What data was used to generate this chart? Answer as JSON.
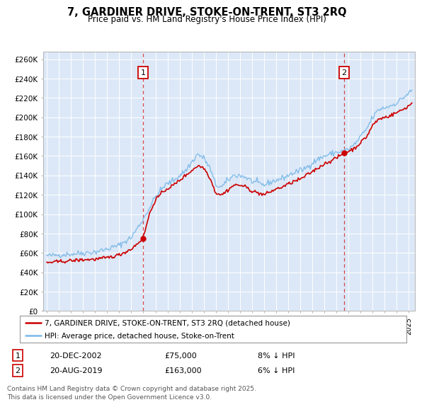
{
  "title": "7, GARDINER DRIVE, STOKE-ON-TRENT, ST3 2RQ",
  "subtitle": "Price paid vs. HM Land Registry's House Price Index (HPI)",
  "ylabel_ticks": [
    "£0",
    "£20K",
    "£40K",
    "£60K",
    "£80K",
    "£100K",
    "£120K",
    "£140K",
    "£160K",
    "£180K",
    "£200K",
    "£220K",
    "£240K",
    "£260K"
  ],
  "ytick_values": [
    0,
    20000,
    40000,
    60000,
    80000,
    100000,
    120000,
    140000,
    160000,
    180000,
    200000,
    220000,
    240000,
    260000
  ],
  "ylim": [
    0,
    268000
  ],
  "xlim_start": 1994.7,
  "xlim_end": 2025.5,
  "bg_color": "#dce8f7",
  "sale1_x": 2002.97,
  "sale1_y": 75000,
  "sale1_label": "1",
  "sale1_date": "20-DEC-2002",
  "sale1_price": "£75,000",
  "sale1_hpi": "8% ↓ HPI",
  "sale2_x": 2019.63,
  "sale2_y": 163000,
  "sale2_label": "2",
  "sale2_date": "20-AUG-2019",
  "sale2_price": "£163,000",
  "sale2_hpi": "6% ↓ HPI",
  "legend_line1": "7, GARDINER DRIVE, STOKE-ON-TRENT, ST3 2RQ (detached house)",
  "legend_line2": "HPI: Average price, detached house, Stoke-on-Trent",
  "footer": "Contains HM Land Registry data © Crown copyright and database right 2025.\nThis data is licensed under the Open Government Licence v3.0.",
  "line_hpi_color": "#7ab8e8",
  "line_sale_color": "#cc0000",
  "vline_color": "#cc0000",
  "hpi_anchors": [
    [
      1995.0,
      57000
    ],
    [
      1996.0,
      58000
    ],
    [
      1997.0,
      59000
    ],
    [
      1998.0,
      60000
    ],
    [
      1999.0,
      61000
    ],
    [
      2000.0,
      64000
    ],
    [
      2001.0,
      68000
    ],
    [
      2002.0,
      76000
    ],
    [
      2003.0,
      95000
    ],
    [
      2004.0,
      118000
    ],
    [
      2004.8,
      130000
    ],
    [
      2005.5,
      135000
    ],
    [
      2006.5,
      145000
    ],
    [
      2007.5,
      162000
    ],
    [
      2008.0,
      158000
    ],
    [
      2008.5,
      148000
    ],
    [
      2009.0,
      130000
    ],
    [
      2009.5,
      128000
    ],
    [
      2010.0,
      135000
    ],
    [
      2010.5,
      140000
    ],
    [
      2011.0,
      140000
    ],
    [
      2011.5,
      138000
    ],
    [
      2012.0,
      134000
    ],
    [
      2012.5,
      132000
    ],
    [
      2013.0,
      130000
    ],
    [
      2013.5,
      133000
    ],
    [
      2014.0,
      135000
    ],
    [
      2014.5,
      137000
    ],
    [
      2015.0,
      140000
    ],
    [
      2015.5,
      143000
    ],
    [
      2016.0,
      145000
    ],
    [
      2016.5,
      148000
    ],
    [
      2017.0,
      153000
    ],
    [
      2017.5,
      157000
    ],
    [
      2018.0,
      160000
    ],
    [
      2018.5,
      162000
    ],
    [
      2019.0,
      164000
    ],
    [
      2019.5,
      165000
    ],
    [
      2020.0,
      167000
    ],
    [
      2020.5,
      172000
    ],
    [
      2021.0,
      180000
    ],
    [
      2021.5,
      188000
    ],
    [
      2022.0,
      200000
    ],
    [
      2022.5,
      208000
    ],
    [
      2023.0,
      210000
    ],
    [
      2023.5,
      212000
    ],
    [
      2024.0,
      215000
    ],
    [
      2024.5,
      220000
    ],
    [
      2025.0,
      225000
    ],
    [
      2025.3,
      228000
    ]
  ],
  "sale_anchors": [
    [
      1995.0,
      50000
    ],
    [
      1996.0,
      51000
    ],
    [
      1997.0,
      52000
    ],
    [
      1998.0,
      53000
    ],
    [
      1999.0,
      53500
    ],
    [
      2000.0,
      55000
    ],
    [
      2001.0,
      58000
    ],
    [
      2002.0,
      64000
    ],
    [
      2002.97,
      75000
    ],
    [
      2003.5,
      100000
    ],
    [
      2004.0,
      115000
    ],
    [
      2004.8,
      125000
    ],
    [
      2005.5,
      130000
    ],
    [
      2006.5,
      140000
    ],
    [
      2007.5,
      150000
    ],
    [
      2008.0,
      148000
    ],
    [
      2008.5,
      138000
    ],
    [
      2009.0,
      122000
    ],
    [
      2009.5,
      120000
    ],
    [
      2010.0,
      125000
    ],
    [
      2010.5,
      130000
    ],
    [
      2011.0,
      130000
    ],
    [
      2011.5,
      128000
    ],
    [
      2012.0,
      124000
    ],
    [
      2012.5,
      122000
    ],
    [
      2013.0,
      120000
    ],
    [
      2013.5,
      123000
    ],
    [
      2014.0,
      126000
    ],
    [
      2014.5,
      128000
    ],
    [
      2015.0,
      131000
    ],
    [
      2015.5,
      134000
    ],
    [
      2016.0,
      136000
    ],
    [
      2016.5,
      140000
    ],
    [
      2017.0,
      144000
    ],
    [
      2017.5,
      148000
    ],
    [
      2018.0,
      152000
    ],
    [
      2018.5,
      155000
    ],
    [
      2019.0,
      158000
    ],
    [
      2019.63,
      163000
    ],
    [
      2020.0,
      165000
    ],
    [
      2020.5,
      168000
    ],
    [
      2021.0,
      174000
    ],
    [
      2021.5,
      180000
    ],
    [
      2022.0,
      192000
    ],
    [
      2022.5,
      198000
    ],
    [
      2023.0,
      200000
    ],
    [
      2023.5,
      202000
    ],
    [
      2024.0,
      205000
    ],
    [
      2024.5,
      208000
    ],
    [
      2025.0,
      212000
    ],
    [
      2025.3,
      215000
    ]
  ]
}
